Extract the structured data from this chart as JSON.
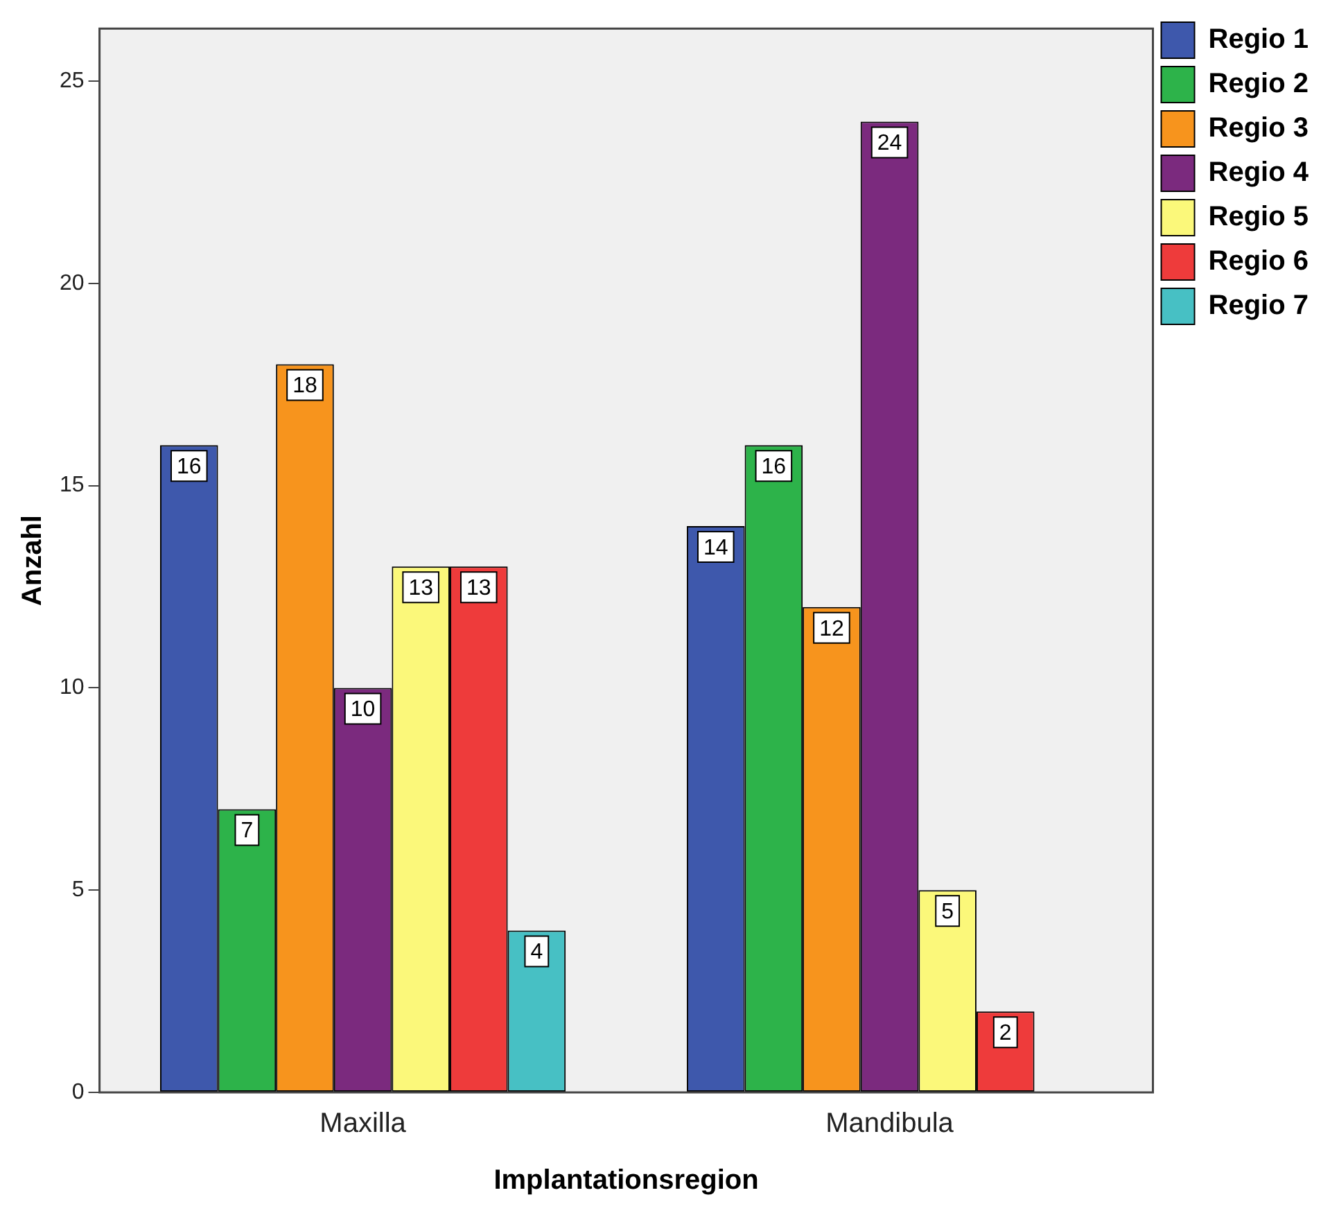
{
  "chart_data": {
    "type": "bar",
    "xlabel": "Implantationsregion",
    "ylabel": "Anzahl",
    "categories": [
      "Maxilla",
      "Mandibula"
    ],
    "series": [
      {
        "name": "Regio 1",
        "color": "#3e58ac",
        "values": [
          16,
          14
        ]
      },
      {
        "name": "Regio 2",
        "color": "#2db34a",
        "values": [
          7,
          16
        ]
      },
      {
        "name": "Regio 3",
        "color": "#f7941d",
        "values": [
          18,
          12
        ]
      },
      {
        "name": "Regio 4",
        "color": "#7b2a7e",
        "values": [
          10,
          24
        ]
      },
      {
        "name": "Regio 5",
        "color": "#fbf87a",
        "values": [
          13,
          5
        ]
      },
      {
        "name": "Regio 6",
        "color": "#ee3b3b",
        "values": [
          13,
          2
        ]
      },
      {
        "name": "Regio 7",
        "color": "#47c0c4",
        "values": [
          4,
          null
        ]
      }
    ],
    "ylim": [
      0,
      26.3
    ],
    "yticks": [
      0,
      5,
      10,
      15,
      20,
      25
    ],
    "grid": false,
    "legend": "top right",
    "data_labels": true
  }
}
